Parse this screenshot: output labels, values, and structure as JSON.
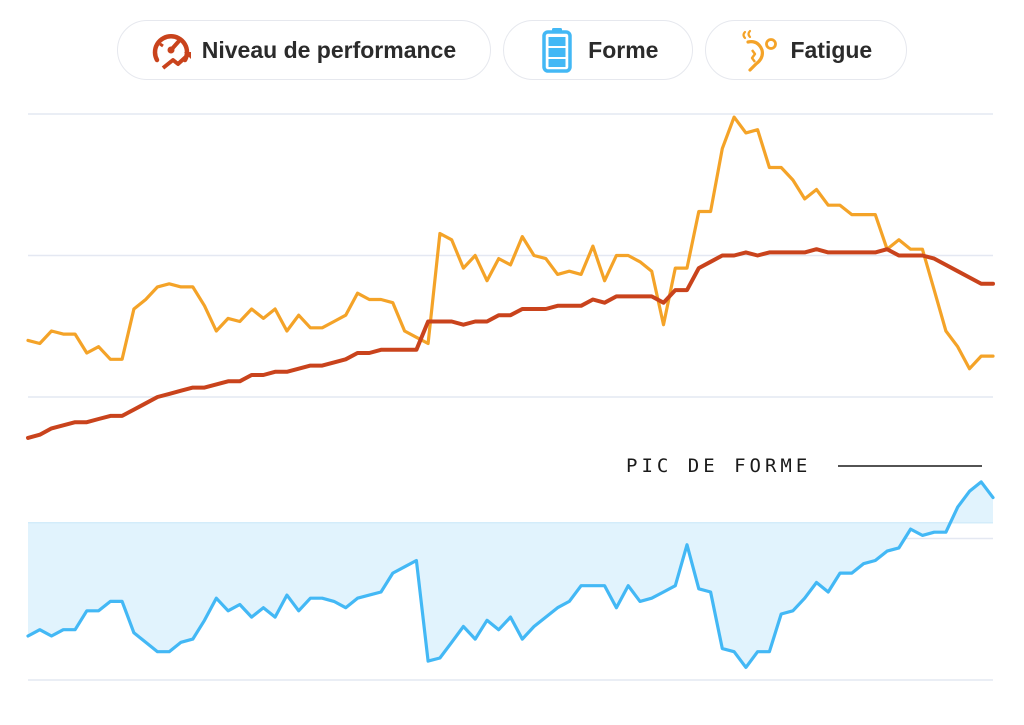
{
  "legend": {
    "items": [
      {
        "label": "Niveau de performance",
        "icon": "speedometer-icon",
        "color": "#c9431c"
      },
      {
        "label": "Forme",
        "icon": "battery-icon",
        "color": "#43b8f5"
      },
      {
        "label": "Fatigue",
        "icon": "sore-muscle-icon",
        "color": "#f4a328"
      }
    ]
  },
  "colors": {
    "performance": "#c9431c",
    "fatigue": "#f4a328",
    "forme": "#43b8f5",
    "forme_fill": "#e1f3fd",
    "grid": "#e4e8f2"
  },
  "chart_data": {
    "type": "line",
    "x": [
      0,
      1,
      2,
      3,
      4,
      5,
      6,
      7,
      8,
      9,
      10,
      11,
      12,
      13,
      14,
      15,
      16,
      17,
      18,
      19,
      20,
      21,
      22,
      23,
      24,
      25,
      26,
      27,
      28,
      29,
      30,
      31,
      32,
      33,
      34,
      35,
      36,
      37,
      38,
      39,
      40,
      41,
      42,
      43,
      44,
      45,
      46,
      47,
      48,
      49,
      50,
      51,
      52,
      53,
      54,
      55,
      56,
      57,
      58,
      59,
      60,
      61,
      62,
      63,
      64,
      65,
      66,
      67,
      68,
      69,
      70,
      71,
      72,
      73,
      74,
      75,
      76,
      77,
      78,
      79,
      80,
      81,
      82
    ],
    "grid_lines": 5,
    "grid": true,
    "series": [
      {
        "name": "Fatigue",
        "key": "fatigue",
        "values": [
          58,
          57,
          61,
          60,
          60,
          54,
          56,
          52,
          52,
          68,
          71,
          75,
          76,
          75,
          75,
          69,
          61,
          65,
          64,
          68,
          65,
          68,
          61,
          66,
          62,
          62,
          64,
          66,
          73,
          71,
          71,
          70,
          61,
          59,
          57,
          92,
          90,
          81,
          85,
          77,
          84,
          82,
          91,
          85,
          84,
          79,
          80,
          79,
          88,
          77,
          85,
          85,
          83,
          80,
          63,
          81,
          81,
          99,
          99,
          119,
          129,
          124,
          125,
          113,
          113,
          109,
          103,
          106,
          101,
          101,
          98,
          98,
          98,
          87,
          90,
          87,
          87,
          74,
          61,
          56,
          49,
          53,
          53
        ]
      },
      {
        "name": "Niveau de performance",
        "key": "performance",
        "values": [
          27,
          28,
          30,
          31,
          32,
          32,
          33,
          34,
          34,
          36,
          38,
          40,
          41,
          42,
          43,
          43,
          44,
          45,
          45,
          47,
          47,
          48,
          48,
          49,
          50,
          50,
          51,
          52,
          54,
          54,
          55,
          55,
          55,
          55,
          64,
          64,
          64,
          63,
          64,
          64,
          66,
          66,
          68,
          68,
          68,
          69,
          69,
          69,
          71,
          70,
          72,
          72,
          72,
          72,
          70,
          74,
          74,
          81,
          83,
          85,
          85,
          86,
          85,
          86,
          86,
          86,
          86,
          87,
          86,
          86,
          86,
          86,
          86,
          87,
          85,
          85,
          85,
          84,
          82,
          80,
          78,
          76,
          76
        ]
      },
      {
        "name": "Forme",
        "key": "forme",
        "values": [
          -36,
          -34,
          -36,
          -34,
          -34,
          -28,
          -28,
          -25,
          -25,
          -35,
          -38,
          -41,
          -41,
          -38,
          -37,
          -31,
          -24,
          -28,
          -26,
          -30,
          -27,
          -30,
          -23,
          -28,
          -24,
          -24,
          -25,
          -27,
          -24,
          -23,
          -22,
          -16,
          -14,
          -12,
          -44,
          -43,
          -38,
          -33,
          -37,
          -31,
          -34,
          -30,
          -37,
          -33,
          -30,
          -27,
          -25,
          -20,
          -20,
          -20,
          -27,
          -20,
          -25,
          -24,
          -22,
          -20,
          -7,
          -21,
          -22,
          -40,
          -41,
          -46,
          -41,
          -41,
          -29,
          -28,
          -24,
          -19,
          -22,
          -16,
          -16,
          -13,
          -12,
          -9,
          -8,
          -2,
          -4,
          -3,
          -3,
          5,
          10,
          13,
          8
        ]
      }
    ],
    "ylim": [
      -50,
      130
    ],
    "annotation": {
      "text": "PIC DE FORME"
    }
  }
}
